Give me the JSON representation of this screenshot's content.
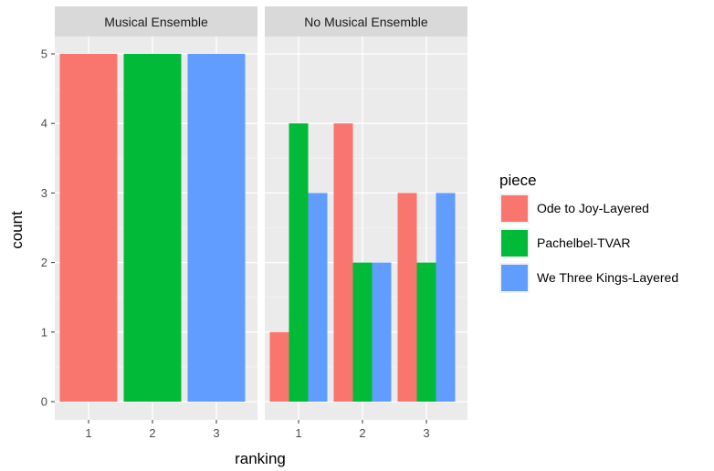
{
  "chart_data": {
    "type": "bar",
    "xlabel": "ranking",
    "ylabel": "count",
    "ylim": [
      0,
      5
    ],
    "yticks": [
      "0",
      "1",
      "2",
      "3",
      "4",
      "5"
    ],
    "categories": [
      "1",
      "2",
      "3"
    ],
    "grid": true,
    "legend": {
      "title": "piece",
      "position": "right",
      "entries": [
        {
          "name": "Ode to Joy-Layered",
          "color": "#F8766D"
        },
        {
          "name": "Pachelbel-TVAR",
          "color": "#00BA38"
        },
        {
          "name": "We Three Kings-Layered",
          "color": "#619CFF"
        }
      ]
    },
    "facets": [
      {
        "strip": "Musical Ensemble",
        "series": [
          {
            "name": "Ode to Joy-Layered",
            "values": [
              5,
              0,
              0
            ]
          },
          {
            "name": "Pachelbel-TVAR",
            "values": [
              0,
              5,
              0
            ]
          },
          {
            "name": "We Three Kings-Layered",
            "values": [
              0,
              0,
              5
            ]
          }
        ]
      },
      {
        "strip": "No Musical Ensemble",
        "series": [
          {
            "name": "Ode to Joy-Layered",
            "values": [
              1,
              4,
              3
            ]
          },
          {
            "name": "Pachelbel-TVAR",
            "values": [
              4,
              2,
              2
            ]
          },
          {
            "name": "We Three Kings-Layered",
            "values": [
              3,
              2,
              3
            ]
          }
        ]
      }
    ]
  }
}
